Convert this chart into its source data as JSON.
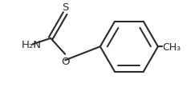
{
  "bg_color": "#ffffff",
  "line_color": "#2a2a2a",
  "line_width": 1.5,
  "text_color": "#2a2a2a",
  "h2n_label": "H₂N",
  "s_label": "S",
  "o_label": "O",
  "ch3_label": "CH₃",
  "font_size": 9.5,
  "figsize": [
    2.43,
    1.15
  ],
  "dpi": 100
}
